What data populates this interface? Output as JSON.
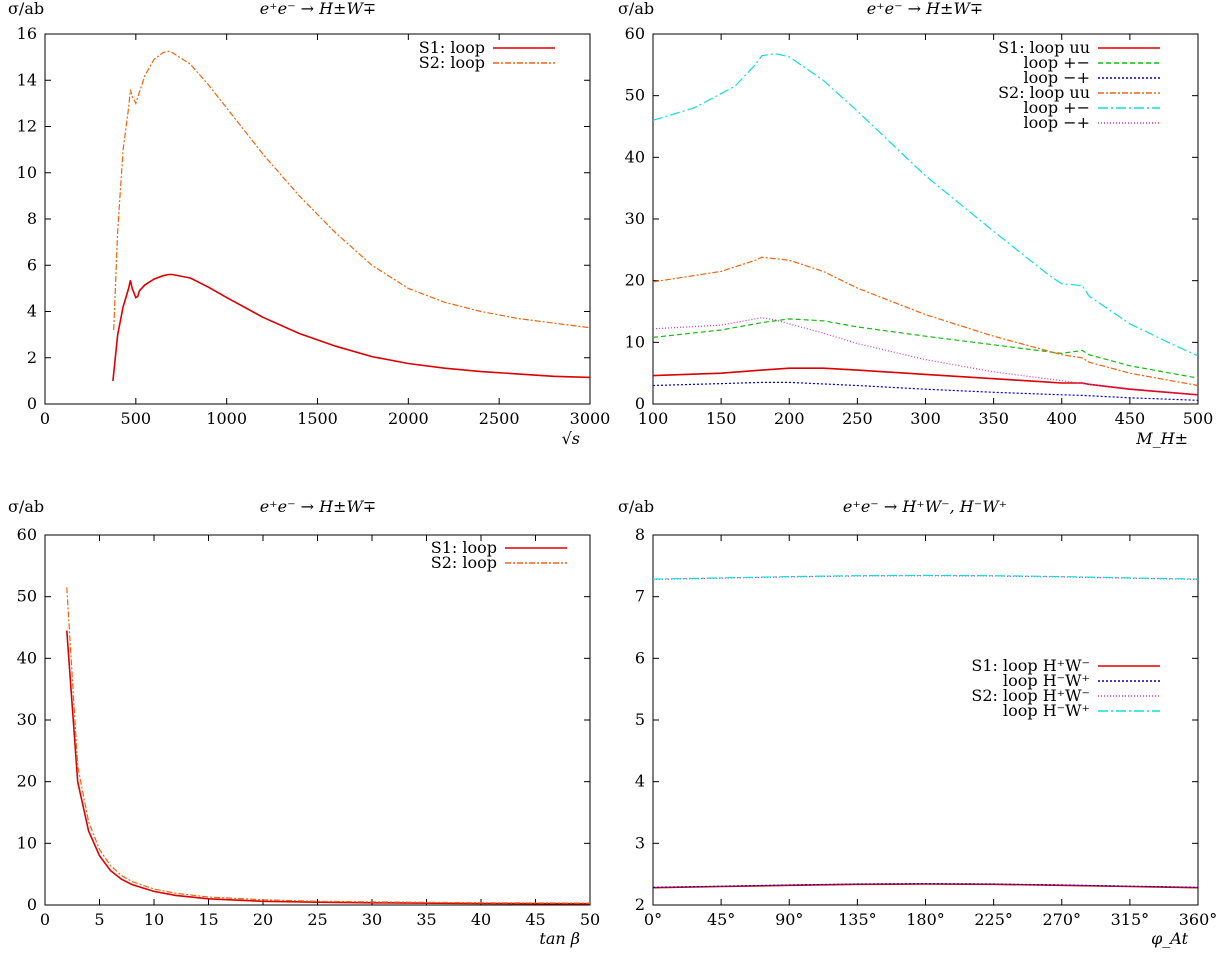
{
  "chart_data": [
    {
      "type": "line",
      "title": "e⁺e⁻ → H±W∓",
      "ylabel": "σ/ab",
      "xlabel": "√s",
      "xlim": [
        0,
        3000
      ],
      "ylim": [
        0,
        16
      ],
      "xticks": [
        0,
        500,
        1000,
        1500,
        2000,
        2500,
        3000
      ],
      "yticks": [
        0,
        2,
        4,
        6,
        8,
        10,
        12,
        14,
        16
      ],
      "xtick_labels": [
        "0",
        "500",
        "1000",
        "1500",
        "2000",
        "2500",
        "3000"
      ],
      "ytick_labels": [
        "0",
        "2",
        "4",
        "6",
        "8",
        "10",
        "12",
        "14",
        "16"
      ],
      "legend_position": "top-right",
      "series": [
        {
          "name": "S1:  loop",
          "color": "#dd0000",
          "dash": "",
          "x": [
            374,
            400,
            430,
            460,
            470,
            480,
            500,
            510,
            520,
            550,
            600,
            650,
            680,
            700,
            800,
            900,
            1000,
            1200,
            1400,
            1600,
            1800,
            2000,
            2200,
            2400,
            2600,
            2800,
            3000
          ],
          "y": [
            1.0,
            3.0,
            4.2,
            5.0,
            5.35,
            5.0,
            4.6,
            4.65,
            4.9,
            5.15,
            5.4,
            5.55,
            5.6,
            5.6,
            5.45,
            5.05,
            4.6,
            3.75,
            3.05,
            2.5,
            2.05,
            1.75,
            1.55,
            1.4,
            1.3,
            1.2,
            1.15
          ]
        },
        {
          "name": "S2:  loop",
          "color": "#ee6611",
          "dash": "6,2,2,2",
          "x": [
            378,
            400,
            430,
            460,
            470,
            480,
            500,
            520,
            550,
            600,
            650,
            680,
            700,
            800,
            900,
            1000,
            1200,
            1400,
            1600,
            1800,
            2000,
            2200,
            2400,
            2600,
            2800,
            3000
          ],
          "y": [
            3.2,
            7.5,
            11.0,
            12.8,
            13.6,
            13.3,
            13.0,
            13.5,
            14.2,
            14.9,
            15.2,
            15.25,
            15.2,
            14.7,
            13.8,
            12.8,
            10.8,
            9.0,
            7.4,
            6.0,
            5.0,
            4.4,
            4.0,
            3.7,
            3.5,
            3.3
          ]
        }
      ]
    },
    {
      "type": "line",
      "title": "e⁺e⁻ → H±W∓",
      "ylabel": "σ/ab",
      "xlabel": "M_H±",
      "xlim": [
        100,
        500
      ],
      "ylim": [
        0,
        60
      ],
      "xticks": [
        100,
        150,
        200,
        250,
        300,
        350,
        400,
        450,
        500
      ],
      "yticks": [
        0,
        10,
        20,
        30,
        40,
        50,
        60
      ],
      "xtick_labels": [
        "100",
        "150",
        "200",
        "250",
        "300",
        "350",
        "400",
        "450",
        "500"
      ],
      "ytick_labels": [
        "0",
        "10",
        "20",
        "30",
        "40",
        "50",
        "60"
      ],
      "legend_position": "top-right",
      "series": [
        {
          "name": "S1:  loop uu",
          "color": "#dd0000",
          "dash": "",
          "x": [
            100,
            150,
            180,
            200,
            225,
            250,
            300,
            350,
            400,
            415,
            420,
            450,
            500
          ],
          "y": [
            4.6,
            5.0,
            5.5,
            5.8,
            5.8,
            5.5,
            4.8,
            4.1,
            3.4,
            3.4,
            3.2,
            2.4,
            1.5
          ]
        },
        {
          "name": "loop +−",
          "color": "#11bb11",
          "dash": "5,3",
          "x": [
            100,
            150,
            180,
            200,
            225,
            250,
            300,
            350,
            400,
            415,
            420,
            450,
            500
          ],
          "y": [
            10.8,
            12.0,
            13.2,
            13.8,
            13.5,
            12.5,
            11.0,
            9.6,
            8.2,
            8.7,
            8.0,
            6.2,
            4.2
          ]
        },
        {
          "name": "loop −+",
          "color": "#0000cc",
          "dash": "2,2",
          "x": [
            100,
            150,
            180,
            200,
            250,
            300,
            350,
            400,
            415,
            450,
            500
          ],
          "y": [
            3.0,
            3.3,
            3.5,
            3.5,
            3.0,
            2.4,
            1.9,
            1.5,
            1.4,
            1.0,
            0.6
          ]
        },
        {
          "name": "S2:  loop uu",
          "color": "#ee6611",
          "dash": "6,2,2,2",
          "x": [
            100,
            150,
            175,
            180,
            200,
            225,
            250,
            300,
            350,
            400,
            415,
            420,
            450,
            500
          ],
          "y": [
            19.8,
            21.5,
            23.3,
            23.8,
            23.3,
            21.5,
            18.8,
            14.5,
            11.0,
            8.0,
            7.5,
            6.8,
            5.0,
            3.0
          ]
        },
        {
          "name": "loop +−",
          "color": "#11dddd",
          "dash": "10,3,2,3",
          "x": [
            100,
            130,
            160,
            175,
            180,
            190,
            200,
            225,
            250,
            300,
            350,
            390,
            400,
            415,
            420,
            450,
            480,
            500
          ],
          "y": [
            46.0,
            48.0,
            51.5,
            55.0,
            56.5,
            56.8,
            56.3,
            52.5,
            47.5,
            37.0,
            28.0,
            21.0,
            19.5,
            19.2,
            17.5,
            13.0,
            9.8,
            7.8
          ]
        },
        {
          "name": "loop −+",
          "color": "#cc33cc",
          "dash": "1,2",
          "x": [
            100,
            150,
            175,
            180,
            190,
            200,
            225,
            250,
            300,
            350,
            400,
            415,
            450,
            500
          ],
          "y": [
            12.2,
            12.8,
            13.8,
            14.0,
            13.6,
            13.0,
            11.5,
            9.8,
            7.2,
            5.2,
            3.8,
            3.3,
            2.5,
            1.5
          ]
        }
      ]
    },
    {
      "type": "line",
      "title": "e⁺e⁻ → H±W∓",
      "ylabel": "σ/ab",
      "xlabel": "tan β",
      "xlim": [
        0,
        50
      ],
      "ylim": [
        0,
        60
      ],
      "xticks": [
        0,
        5,
        10,
        15,
        20,
        25,
        30,
        35,
        40,
        45,
        50
      ],
      "yticks": [
        0,
        10,
        20,
        30,
        40,
        50,
        60
      ],
      "xtick_labels": [
        "0",
        "5",
        "10",
        "15",
        "20",
        "25",
        "30",
        "35",
        "40",
        "45",
        "50"
      ],
      "ytick_labels": [
        "0",
        "10",
        "20",
        "30",
        "40",
        "50",
        "60"
      ],
      "legend_position": "top-right",
      "series": [
        {
          "name": "S1:  loop",
          "color": "#dd0000",
          "dash": "",
          "x": [
            2,
            3,
            4,
            5,
            6,
            7,
            8,
            10,
            12,
            15,
            20,
            25,
            30,
            40,
            50
          ],
          "y": [
            44.5,
            20.0,
            12.0,
            8.0,
            5.6,
            4.2,
            3.3,
            2.2,
            1.55,
            1.0,
            0.6,
            0.45,
            0.35,
            0.25,
            0.2
          ]
        },
        {
          "name": "S2:  loop",
          "color": "#ee6611",
          "dash": "6,2,2,2",
          "x": [
            2,
            3,
            4,
            5,
            6,
            7,
            8,
            10,
            12,
            15,
            20,
            25,
            30,
            40,
            50
          ],
          "y": [
            51.5,
            22.5,
            13.5,
            9.0,
            6.4,
            4.8,
            3.8,
            2.6,
            1.9,
            1.3,
            0.85,
            0.6,
            0.5,
            0.35,
            0.3
          ]
        }
      ]
    },
    {
      "type": "line",
      "title": "e⁺e⁻ → H⁺W⁻, H⁻W⁺",
      "ylabel": "σ/ab",
      "xlabel": "φ_At",
      "xlim": [
        0,
        360
      ],
      "ylim": [
        2,
        8
      ],
      "xticks": [
        0,
        45,
        90,
        135,
        180,
        225,
        270,
        315,
        360
      ],
      "yticks": [
        2,
        3,
        4,
        5,
        6,
        7,
        8
      ],
      "xtick_labels": [
        "0°",
        "45°",
        "90°",
        "135°",
        "180°",
        "225°",
        "270°",
        "315°",
        "360°"
      ],
      "ytick_labels": [
        "2",
        "3",
        "4",
        "5",
        "6",
        "7",
        "8"
      ],
      "legend_position": "right",
      "series": [
        {
          "name": "S1:  loop H⁺W⁻",
          "color": "#dd0000",
          "dash": "",
          "x": [
            0,
            45,
            90,
            135,
            180,
            225,
            270,
            315,
            360
          ],
          "y": [
            2.28,
            2.3,
            2.32,
            2.335,
            2.34,
            2.335,
            2.32,
            2.3,
            2.28
          ]
        },
        {
          "name": "loop H⁻W⁺",
          "color": "#0000cc",
          "dash": "2,2",
          "x": [
            0,
            45,
            90,
            135,
            180,
            225,
            270,
            315,
            360
          ],
          "y": [
            2.285,
            2.305,
            2.325,
            2.34,
            2.345,
            2.34,
            2.325,
            2.305,
            2.285
          ]
        },
        {
          "name": "S2:  loop H⁺W⁻",
          "color": "#cc33cc",
          "dash": "1,2",
          "x": [
            0,
            45,
            90,
            135,
            180,
            225,
            270,
            315,
            360
          ],
          "y": [
            7.28,
            7.3,
            7.32,
            7.335,
            7.34,
            7.335,
            7.32,
            7.3,
            7.28
          ]
        },
        {
          "name": "loop H⁻W⁺",
          "color": "#11dddd",
          "dash": "10,3,2,3",
          "x": [
            0,
            45,
            90,
            135,
            180,
            225,
            270,
            315,
            360
          ],
          "y": [
            7.285,
            7.305,
            7.325,
            7.34,
            7.345,
            7.34,
            7.325,
            7.305,
            7.285
          ]
        }
      ]
    }
  ]
}
